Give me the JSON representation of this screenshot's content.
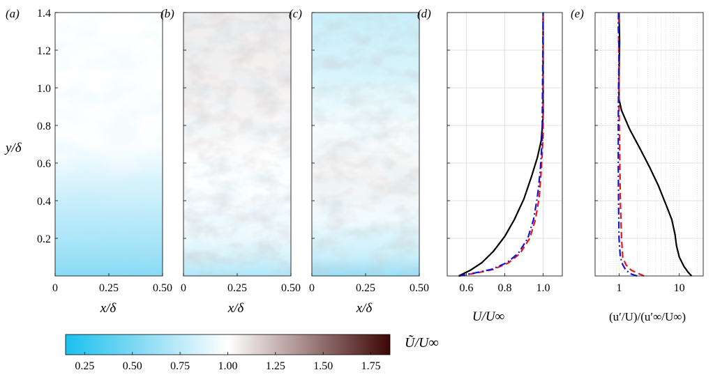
{
  "colors": {
    "cmap_low": "#19c1ee",
    "cmap_mid": "#ffffff",
    "cmap_high": "#3c0606",
    "solid_line": "#000000",
    "dashed_line": "#e8141e",
    "dashdot_line": "#1414d2",
    "grid": "#d8d8d8"
  },
  "chart_data": [
    {
      "type": "heatmap",
      "panel_label": "(a)",
      "xlabel": "",
      "ylabel": "y/δ",
      "xlim": [
        0,
        0.5
      ],
      "ylim": [
        0,
        1.4
      ],
      "xticks": [
        "0",
        "0.25",
        "0.50"
      ],
      "yticks": [
        "0.2",
        "0.4",
        "0.6",
        "0.8",
        "1.0",
        "1.2",
        "1.4"
      ],
      "field_profile": [
        [
          0.0,
          0.55
        ],
        [
          0.1,
          0.62
        ],
        [
          0.2,
          0.68
        ],
        [
          0.3,
          0.74
        ],
        [
          0.4,
          0.8
        ],
        [
          0.5,
          0.86
        ],
        [
          0.6,
          0.94
        ],
        [
          0.7,
          0.99
        ],
        [
          1.4,
          1.0
        ]
      ]
    },
    {
      "type": "heatmap",
      "panel_label": "(b)",
      "xlabel": "x/δ",
      "xlim": [
        0,
        0.5
      ],
      "ylim": [
        0,
        1.4
      ],
      "xticks": [
        "0",
        "0.25",
        "0.50"
      ],
      "field_profile": [
        [
          0.0,
          0.7
        ],
        [
          0.1,
          0.85
        ],
        [
          0.2,
          0.93
        ],
        [
          0.4,
          0.98
        ],
        [
          0.6,
          1.0
        ],
        [
          1.0,
          1.05
        ],
        [
          1.4,
          1.06
        ]
      ]
    },
    {
      "type": "heatmap",
      "panel_label": "(c)",
      "xlabel": "x/δ",
      "xlim": [
        0,
        0.5
      ],
      "ylim": [
        0,
        1.4
      ],
      "xticks": [
        "0",
        "0.25",
        "0.50"
      ],
      "field_profile": [
        [
          0.0,
          0.6
        ],
        [
          0.1,
          0.8
        ],
        [
          0.3,
          0.95
        ],
        [
          0.5,
          1.04
        ],
        [
          0.8,
          0.97
        ],
        [
          1.1,
          0.85
        ],
        [
          1.4,
          0.8
        ]
      ]
    },
    {
      "type": "line",
      "panel_label": "(d)",
      "xlabel": "U/U∞",
      "xlim": [
        0.5,
        1.1
      ],
      "ylim": [
        0,
        1.4
      ],
      "xticks": [
        "0.6",
        "0.8",
        "1.0"
      ],
      "xtick_values": [
        0.6,
        0.8,
        1.0
      ],
      "grid": true,
      "series": [
        {
          "style": "solid",
          "x": [
            0.56,
            0.62,
            0.68,
            0.74,
            0.8,
            0.85,
            0.9,
            0.94,
            0.97,
            0.99,
            1.0,
            1.0
          ],
          "y": [
            0.0,
            0.03,
            0.07,
            0.13,
            0.21,
            0.3,
            0.41,
            0.53,
            0.63,
            0.72,
            0.85,
            1.4
          ]
        },
        {
          "style": "dashed",
          "x": [
            0.56,
            0.65,
            0.74,
            0.82,
            0.88,
            0.93,
            0.96,
            0.98,
            0.99,
            1.0,
            1.0
          ],
          "y": [
            0.0,
            0.015,
            0.035,
            0.07,
            0.12,
            0.2,
            0.3,
            0.42,
            0.56,
            0.75,
            1.4
          ]
        },
        {
          "style": "dashdot",
          "x": [
            0.56,
            0.64,
            0.73,
            0.81,
            0.87,
            0.92,
            0.95,
            0.97,
            0.985,
            0.995,
            1.0
          ],
          "y": [
            0.0,
            0.015,
            0.035,
            0.07,
            0.12,
            0.2,
            0.3,
            0.42,
            0.56,
            0.72,
            1.4
          ]
        }
      ]
    },
    {
      "type": "line",
      "panel_label": "(e)",
      "xlabel": "(u′/U)/(u′∞/U∞)",
      "xscale": "log",
      "xlim": [
        0.4,
        25
      ],
      "ylim": [
        0,
        1.4
      ],
      "xticks": [
        "1",
        "10"
      ],
      "xtick_values": [
        1,
        10
      ],
      "grid": true,
      "series": [
        {
          "style": "solid",
          "x": [
            16,
            14,
            12,
            10,
            9,
            8.5,
            7.5,
            6,
            4.5,
            3.2,
            2.2,
            1.5,
            1.1,
            1.0,
            1.0,
            1.02,
            1.0
          ],
          "y": [
            0.0,
            0.02,
            0.05,
            0.1,
            0.16,
            0.22,
            0.3,
            0.38,
            0.48,
            0.58,
            0.68,
            0.78,
            0.88,
            0.94,
            1.05,
            1.25,
            1.4
          ]
        },
        {
          "style": "dashed",
          "x": [
            2.6,
            2.2,
            1.6,
            1.3,
            1.15,
            1.1,
            1.05,
            1.02,
            1.0,
            1.0,
            0.98,
            1.0
          ],
          "y": [
            0.0,
            0.01,
            0.03,
            0.06,
            0.1,
            0.2,
            0.4,
            0.7,
            0.9,
            1.05,
            1.3,
            1.4
          ]
        },
        {
          "style": "dashdot",
          "x": [
            2.0,
            1.6,
            1.3,
            1.15,
            1.05,
            1.0,
            0.98,
            0.97,
            0.97,
            0.98,
            1.0,
            0.97,
            0.98
          ],
          "y": [
            0.0,
            0.01,
            0.03,
            0.06,
            0.1,
            0.2,
            0.4,
            0.6,
            0.8,
            1.0,
            1.2,
            1.33,
            1.4
          ]
        }
      ]
    }
  ],
  "colorbar": {
    "label": "Ũ/U∞",
    "range": [
      0.15,
      1.85
    ],
    "ticks": [
      "0.25",
      "0.50",
      "0.75",
      "1.00",
      "1.25",
      "1.50",
      "1.75"
    ],
    "tick_values": [
      0.25,
      0.5,
      0.75,
      1.0,
      1.25,
      1.5,
      1.75
    ]
  }
}
